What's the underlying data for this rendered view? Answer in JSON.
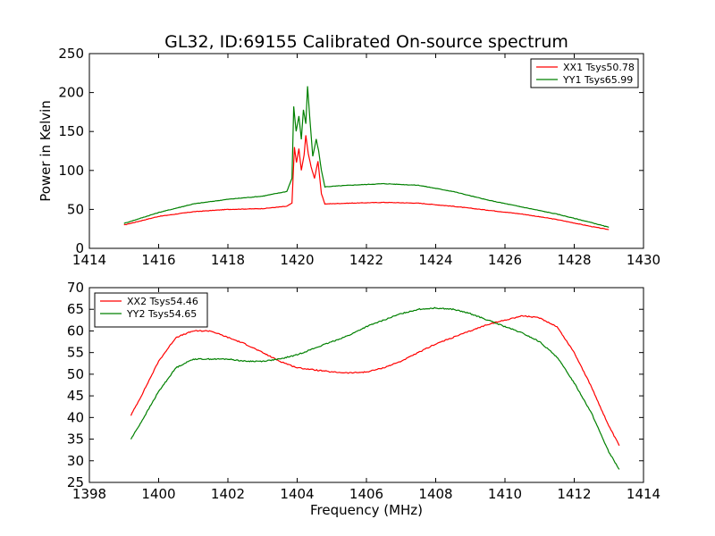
{
  "title": "GL32, ID:69155 Calibrated On-source spectrum",
  "chart_data": [
    {
      "type": "line",
      "ylabel": "Power in Kelvin",
      "xlabel": "",
      "xlim": [
        1414,
        1430
      ],
      "ylim": [
        0,
        250
      ],
      "xticks": [
        "1414",
        "1416",
        "1418",
        "1420",
        "1422",
        "1424",
        "1426",
        "1428",
        "1430"
      ],
      "yticks": [
        "0",
        "50",
        "100",
        "150",
        "200",
        "250"
      ],
      "legend": "top-right",
      "series": [
        {
          "name": "XX1 Tsys50.78",
          "color": "#ff0000",
          "points": [
            [
              1415,
              30
            ],
            [
              1416,
              41
            ],
            [
              1417,
              47
            ],
            [
              1418,
              50
            ],
            [
              1419,
              51
            ],
            [
              1419.7,
              54
            ],
            [
              1419.85,
              58
            ],
            [
              1419.92,
              130
            ],
            [
              1419.98,
              110
            ],
            [
              1420.05,
              128
            ],
            [
              1420.12,
              100
            ],
            [
              1420.2,
              120
            ],
            [
              1420.25,
              145
            ],
            [
              1420.32,
              122
            ],
            [
              1420.4,
              105
            ],
            [
              1420.5,
              90
            ],
            [
              1420.6,
              112
            ],
            [
              1420.7,
              70
            ],
            [
              1420.8,
              57
            ],
            [
              1421.5,
              58
            ],
            [
              1422.5,
              59
            ],
            [
              1423.5,
              58
            ],
            [
              1424.5,
              54
            ],
            [
              1425.5,
              49
            ],
            [
              1426.5,
              44
            ],
            [
              1427.5,
              37
            ],
            [
              1428.5,
              28
            ],
            [
              1429,
              24
            ]
          ]
        },
        {
          "name": "YY1 Tsys65.99",
          "color": "#008000",
          "points": [
            [
              1415,
              32
            ],
            [
              1416,
              46
            ],
            [
              1417,
              57
            ],
            [
              1418,
              63
            ],
            [
              1419,
              67
            ],
            [
              1419.7,
              73
            ],
            [
              1419.85,
              90
            ],
            [
              1419.9,
              182
            ],
            [
              1419.97,
              150
            ],
            [
              1420.05,
              170
            ],
            [
              1420.12,
              140
            ],
            [
              1420.18,
              178
            ],
            [
              1420.25,
              160
            ],
            [
              1420.3,
              208
            ],
            [
              1420.36,
              170
            ],
            [
              1420.45,
              118
            ],
            [
              1420.55,
              140
            ],
            [
              1420.62,
              125
            ],
            [
              1420.7,
              100
            ],
            [
              1420.8,
              79
            ],
            [
              1421.5,
              81
            ],
            [
              1422.5,
              83
            ],
            [
              1423.5,
              81
            ],
            [
              1424.5,
              73
            ],
            [
              1425.5,
              62
            ],
            [
              1426.5,
              53
            ],
            [
              1427.5,
              44
            ],
            [
              1428.5,
              33
            ],
            [
              1429,
              27
            ]
          ]
        }
      ]
    },
    {
      "type": "line",
      "ylabel": "",
      "xlabel": "Frequency (MHz)",
      "xlim": [
        1398,
        1414
      ],
      "ylim": [
        25,
        70
      ],
      "xticks": [
        "1398",
        "1400",
        "1402",
        "1404",
        "1406",
        "1408",
        "1410",
        "1412",
        "1414"
      ],
      "yticks": [
        "25",
        "30",
        "35",
        "40",
        "45",
        "50",
        "55",
        "60",
        "65",
        "70"
      ],
      "legend": "top-left",
      "series": [
        {
          "name": "XX2 Tsys54.46",
          "color": "#ff0000",
          "points": [
            [
              1399.2,
              40.5
            ],
            [
              1399.5,
              45
            ],
            [
              1400,
              53
            ],
            [
              1400.5,
              58.5
            ],
            [
              1401,
              60
            ],
            [
              1401.5,
              60
            ],
            [
              1402,
              58.5
            ],
            [
              1402.5,
              57
            ],
            [
              1403,
              55
            ],
            [
              1403.5,
              53
            ],
            [
              1404,
              51.5
            ],
            [
              1404.5,
              51
            ],
            [
              1405,
              50.5
            ],
            [
              1405.5,
              50.3
            ],
            [
              1406,
              50.5
            ],
            [
              1406.5,
              51.5
            ],
            [
              1407,
              53
            ],
            [
              1407.5,
              55
            ],
            [
              1408,
              57
            ],
            [
              1408.5,
              58.5
            ],
            [
              1409,
              60
            ],
            [
              1409.5,
              61.5
            ],
            [
              1410,
              62.5
            ],
            [
              1410.5,
              63.5
            ],
            [
              1411,
              63
            ],
            [
              1411.5,
              61
            ],
            [
              1412,
              55
            ],
            [
              1412.5,
              47
            ],
            [
              1413,
              38
            ],
            [
              1413.3,
              33.5
            ]
          ]
        },
        {
          "name": "YY2 Tsys54.65",
          "color": "#008000",
          "points": [
            [
              1399.2,
              35
            ],
            [
              1399.5,
              39
            ],
            [
              1400,
              46
            ],
            [
              1400.5,
              51.5
            ],
            [
              1401,
              53.5
            ],
            [
              1401.5,
              53.5
            ],
            [
              1402,
              53.5
            ],
            [
              1402.5,
              53
            ],
            [
              1403,
              53
            ],
            [
              1403.5,
              53.5
            ],
            [
              1404,
              54.5
            ],
            [
              1404.5,
              56
            ],
            [
              1405,
              57.5
            ],
            [
              1405.5,
              59
            ],
            [
              1406,
              61
            ],
            [
              1406.5,
              62.5
            ],
            [
              1407,
              64
            ],
            [
              1407.5,
              65
            ],
            [
              1408,
              65.3
            ],
            [
              1408.5,
              65
            ],
            [
              1409,
              64
            ],
            [
              1409.5,
              62.5
            ],
            [
              1410,
              61
            ],
            [
              1410.5,
              59.5
            ],
            [
              1411,
              57.5
            ],
            [
              1411.5,
              54
            ],
            [
              1412,
              48
            ],
            [
              1412.5,
              41
            ],
            [
              1413,
              32
            ],
            [
              1413.3,
              28
            ]
          ]
        }
      ]
    }
  ]
}
